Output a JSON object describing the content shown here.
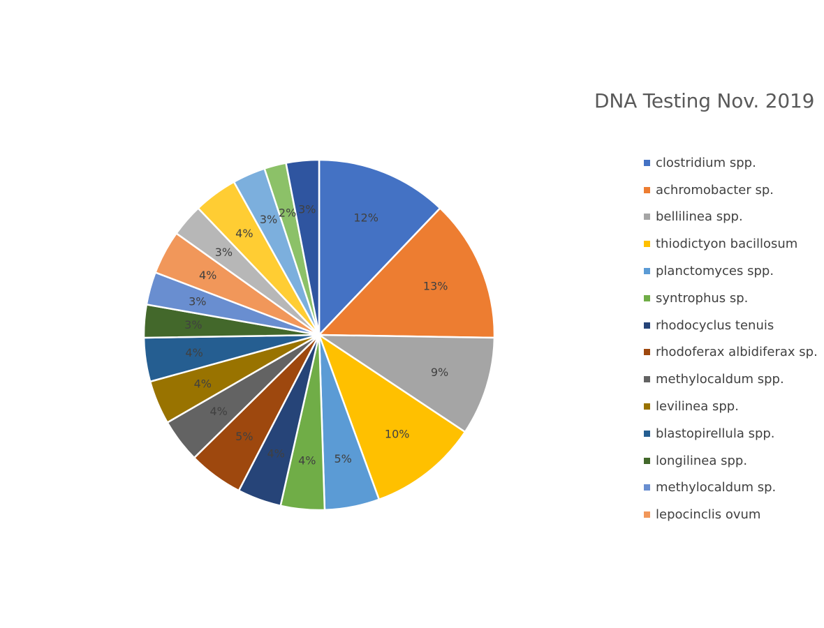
{
  "chart_data": {
    "type": "pie",
    "title": "DNA Testing Nov. 2019",
    "legend_position": "right",
    "slices": [
      {
        "label": "clostridium spp.",
        "value": 12,
        "display": "12%",
        "color": "#4472C4",
        "label_color": "#404040"
      },
      {
        "label": "achromobacter sp.",
        "value": 13,
        "display": "13%",
        "color": "#ED7D31",
        "label_color": "#404040"
      },
      {
        "label": "bellilinea spp.",
        "value": 9,
        "display": "9%",
        "color": "#A5A5A5",
        "label_color": "#404040"
      },
      {
        "label": "thiodictyon bacillosum",
        "value": 10,
        "display": "10%",
        "color": "#FFC000",
        "label_color": "#404040"
      },
      {
        "label": "planctomyces spp.",
        "value": 5,
        "display": "5%",
        "color": "#5B9BD5",
        "label_color": "#404040"
      },
      {
        "label": "syntrophus sp.",
        "value": 4,
        "display": "4%",
        "color": "#70AD47",
        "label_color": "#404040"
      },
      {
        "label": "rhodocyclus tenuis",
        "value": 4,
        "display": "4%",
        "color": "#264478",
        "label_color": "#404040"
      },
      {
        "label": "rhodoferax albidiferax sp.",
        "value": 5,
        "display": "5%",
        "color": "#9E480E",
        "label_color": "#404040"
      },
      {
        "label": "methylocaldum spp.",
        "value": 4,
        "display": "4%",
        "color": "#636363",
        "label_color": "#404040"
      },
      {
        "label": "levilinea spp.",
        "value": 4,
        "display": "4%",
        "color": "#997300",
        "label_color": "#404040"
      },
      {
        "label": "blastopirellula spp.",
        "value": 4,
        "display": "4%",
        "color": "#255E91",
        "label_color": "#404040"
      },
      {
        "label": "longilinea spp.",
        "value": 3,
        "display": "3%",
        "color": "#43682B",
        "label_color": "#404040"
      },
      {
        "label": "methylocaldum sp.",
        "value": 3,
        "display": "3%",
        "color": "#698ED0",
        "label_color": "#404040"
      },
      {
        "label": "lepocinclis ovum",
        "value": 4,
        "display": "4%",
        "color": "#F1975A",
        "label_color": "#404040"
      },
      {
        "label": "",
        "value": 3,
        "display": "3%",
        "color": "#B7B7B7",
        "label_color": "#404040"
      },
      {
        "label": "",
        "value": 4,
        "display": "4%",
        "color": "#FFCD33",
        "label_color": "#404040"
      },
      {
        "label": "",
        "value": 3,
        "display": "3%",
        "color": "#7CAFDD",
        "label_color": "#404040"
      },
      {
        "label": "",
        "value": 2,
        "display": "2%",
        "color": "#8CC168",
        "label_color": "#404040"
      },
      {
        "label": "",
        "value": 3,
        "display": "3%",
        "color": "#2F55A0",
        "label_color": "#404040"
      }
    ]
  }
}
